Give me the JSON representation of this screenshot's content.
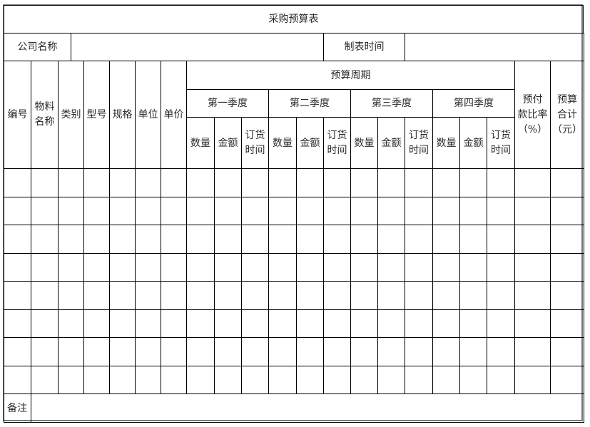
{
  "title": "采购预算表",
  "company_label": "公司名称",
  "company_value": "",
  "date_label": "制表时间",
  "date_value": "",
  "headers": {
    "no": "编号",
    "material_name_1": "物料",
    "material_name_2": "名称",
    "category": "类别",
    "model": "型号",
    "spec": "规格",
    "unit": "单位",
    "unit_price": "单价",
    "budget_period": "预算周期",
    "quarters": [
      "第一季度",
      "第二季度",
      "第三季度",
      "第四季度"
    ],
    "quantity": "数量",
    "amount": "金额",
    "order_time_1": "订货",
    "order_time_2": "时间",
    "prepay_1": "预付",
    "prepay_2": "款比率",
    "prepay_3": "（%）",
    "total_1": "预算",
    "total_2": "合计",
    "total_3": "（元）"
  },
  "rows": [
    [],
    [],
    [],
    [],
    [],
    [],
    [],
    []
  ],
  "remarks_label": "备注",
  "remarks_value": ""
}
